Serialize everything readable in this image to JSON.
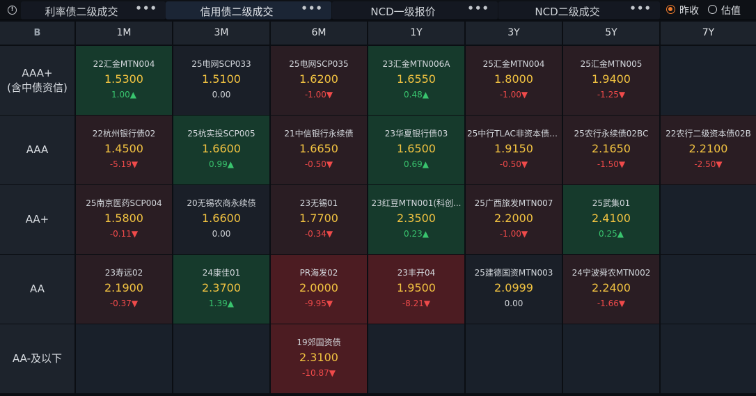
{
  "tabs": [
    {
      "label": "利率债二级成交",
      "active": false
    },
    {
      "label": "信用债二级成交",
      "active": true
    },
    {
      "label": "NCD一级报价",
      "active": false
    },
    {
      "label": "NCD二级成交",
      "active": false
    }
  ],
  "more_label": "•••",
  "radios": [
    {
      "label": "昨收",
      "checked": true
    },
    {
      "label": "估值",
      "checked": false
    }
  ],
  "corner_icon": "B",
  "columns": [
    "1M",
    "3M",
    "6M",
    "1Y",
    "3Y",
    "5Y",
    "7Y"
  ],
  "rows": [
    {
      "label_lines": [
        "AAA+",
        "(含中债资信)"
      ],
      "cells": [
        {
          "bond": "22汇金MTN004",
          "yield": "1.5300",
          "change": "1.00",
          "dir": "up",
          "style": "up"
        },
        {
          "bond": "25电网SCP033",
          "yield": "1.5100",
          "change": "0.00",
          "dir": "flat",
          "style": "flat"
        },
        {
          "bond": "25电网SCP035",
          "yield": "1.6200",
          "change": "-1.00",
          "dir": "down",
          "style": "down"
        },
        {
          "bond": "23汇金MTN006A",
          "yield": "1.6550",
          "change": "0.48",
          "dir": "up",
          "style": "up"
        },
        {
          "bond": "25汇金MTN004",
          "yield": "1.8000",
          "change": "-1.00",
          "dir": "down",
          "style": "down"
        },
        {
          "bond": "25汇金MTN005",
          "yield": "1.9400",
          "change": "-1.25",
          "dir": "down",
          "style": "down"
        },
        null
      ]
    },
    {
      "label_lines": [
        "AAA"
      ],
      "cells": [
        {
          "bond": "22杭州银行债02",
          "yield": "1.4500",
          "change": "-5.19",
          "dir": "down",
          "style": "down"
        },
        {
          "bond": "25杭实投SCP005",
          "yield": "1.6600",
          "change": "0.99",
          "dir": "up",
          "style": "up"
        },
        {
          "bond": "21中信银行永续债",
          "yield": "1.6650",
          "change": "-0.50",
          "dir": "down",
          "style": "down"
        },
        {
          "bond": "23华夏银行债03",
          "yield": "1.6500",
          "change": "0.69",
          "dir": "up",
          "style": "up"
        },
        {
          "bond": "25中行TLAC非资本债0...",
          "yield": "1.9150",
          "change": "-0.50",
          "dir": "down",
          "style": "down"
        },
        {
          "bond": "25农行永续债02BC",
          "yield": "2.1650",
          "change": "-1.50",
          "dir": "down",
          "style": "down"
        },
        {
          "bond": "22农行二级资本债02B",
          "yield": "2.2100",
          "change": "-2.50",
          "dir": "down",
          "style": "down"
        }
      ]
    },
    {
      "label_lines": [
        "AA+"
      ],
      "cells": [
        {
          "bond": "25南京医药SCP004",
          "yield": "1.5800",
          "change": "-0.11",
          "dir": "down",
          "style": "down"
        },
        {
          "bond": "20无锡农商永续债",
          "yield": "1.6600",
          "change": "0.00",
          "dir": "flat",
          "style": "flat"
        },
        {
          "bond": "23无锡01",
          "yield": "1.7700",
          "change": "-0.34",
          "dir": "down",
          "style": "down"
        },
        {
          "bond": "23红豆MTN001(科创...",
          "yield": "2.3500",
          "change": "0.23",
          "dir": "up",
          "style": "up"
        },
        {
          "bond": "25广西旅发MTN007",
          "yield": "2.2000",
          "change": "-1.00",
          "dir": "down",
          "style": "down"
        },
        {
          "bond": "25武集01",
          "yield": "2.4100",
          "change": "0.25",
          "dir": "up",
          "style": "up"
        },
        null
      ]
    },
    {
      "label_lines": [
        "AA"
      ],
      "cells": [
        {
          "bond": "23寿远02",
          "yield": "2.1900",
          "change": "-0.37",
          "dir": "down",
          "style": "down"
        },
        {
          "bond": "24康佳01",
          "yield": "2.3700",
          "change": "1.39",
          "dir": "up",
          "style": "up"
        },
        {
          "bond": "PR海发02",
          "yield": "2.0000",
          "change": "-9.95",
          "dir": "down",
          "style": "deep"
        },
        {
          "bond": "23丰开04",
          "yield": "1.9500",
          "change": "-8.21",
          "dir": "down",
          "style": "deep"
        },
        {
          "bond": "25建德国资MTN003",
          "yield": "2.0999",
          "change": "0.00",
          "dir": "flat",
          "style": "flat"
        },
        {
          "bond": "24宁波舜农MTN002",
          "yield": "2.2400",
          "change": "-1.66",
          "dir": "down",
          "style": "down"
        },
        null
      ]
    },
    {
      "label_lines": [
        "AA-及以下"
      ],
      "cells": [
        null,
        null,
        {
          "bond": "19郊国资债",
          "yield": "2.3100",
          "change": "-10.87",
          "dir": "down",
          "style": "deep"
        },
        null,
        null,
        null,
        null
      ]
    }
  ]
}
